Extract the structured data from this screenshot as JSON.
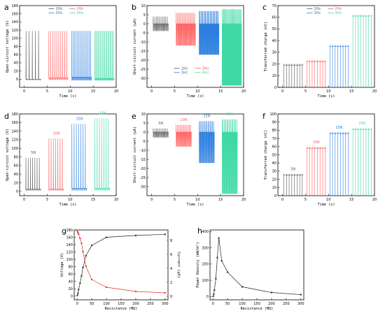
{
  "colors": {
    "black": "#5a5a5a",
    "red": "#ff5a5a",
    "blue": "#2c7fe0",
    "green": "#3fd9a6",
    "dark": "#222222",
    "redline": "#e8302a"
  },
  "chart_data": [
    {
      "panel": "a",
      "type": "line",
      "xlabel": "Time (s)",
      "ylabel": "Open-circuit voltage (V)",
      "xlim": [
        -1,
        20
      ],
      "ylim": [
        -20,
        180
      ],
      "xticks": [
        0,
        5,
        10,
        15,
        20
      ],
      "yticks": [
        0,
        20,
        40,
        60,
        80,
        100,
        120,
        140,
        160,
        180
      ],
      "legend": [
        "1Hz",
        "2Hz",
        "3Hz",
        "4Hz"
      ],
      "series": [
        {
          "name": "1Hz",
          "color": "#5a5a5a",
          "start": 0.3,
          "end": 3.7,
          "count": 5,
          "peak": 118,
          "base": 0,
          "neg": -2
        },
        {
          "name": "2Hz",
          "color": "#ff5a5a",
          "start": 5.3,
          "end": 9.6,
          "count": 10,
          "peak": 118,
          "base": 3,
          "neg": -2
        },
        {
          "name": "3Hz",
          "color": "#2c7fe0",
          "start": 10.3,
          "end": 14.7,
          "count": 14,
          "peak": 118,
          "base": 5,
          "neg": -3
        },
        {
          "name": "4Hz",
          "color": "#3fd9a6",
          "start": 15.3,
          "end": 19.6,
          "count": 18,
          "peak": 118,
          "base": 2,
          "neg": -3
        }
      ]
    },
    {
      "panel": "b",
      "type": "line",
      "xlabel": "Time (s)",
      "ylabel": "Short-circuit current (μA)",
      "xlim": [
        -1,
        20
      ],
      "ylim": [
        -35,
        10
      ],
      "xticks": [
        0,
        5,
        10,
        15,
        20
      ],
      "yticks": [
        -30,
        -25,
        -20,
        -15,
        -10,
        -5,
        0,
        5,
        10
      ],
      "legend": [
        "1Hz",
        "2Hz",
        "3Hz",
        "4Hz"
      ],
      "series": [
        {
          "name": "1Hz",
          "color": "#5a5a5a",
          "start": 0.3,
          "end": 3.7,
          "count": 10,
          "peak": 4,
          "base": 0,
          "neg": -4
        },
        {
          "name": "2Hz",
          "color": "#ff5a5a",
          "start": 5.3,
          "end": 9.6,
          "count": 16,
          "peak": 6,
          "base": 0,
          "neg": -12
        },
        {
          "name": "3Hz",
          "color": "#2c7fe0",
          "start": 10.3,
          "end": 14.7,
          "count": 22,
          "peak": 7,
          "base": 0,
          "neg": -17
        },
        {
          "name": "4Hz",
          "color": "#3fd9a6",
          "start": 15.3,
          "end": 19.6,
          "count": 26,
          "peak": 8,
          "base": 0,
          "neg": -34
        }
      ]
    },
    {
      "panel": "c",
      "type": "step",
      "xlabel": "Time (s)",
      "ylabel": "Transferred charge (nC)",
      "xlim": [
        -1,
        20
      ],
      "ylim": [
        0,
        70
      ],
      "xticks": [
        0,
        5,
        10,
        15,
        20
      ],
      "yticks": [
        0,
        10,
        20,
        30,
        40,
        50,
        60,
        70
      ],
      "legend": [
        "1Hz",
        "2Hz",
        "3Hz",
        "4Hz"
      ],
      "series": [
        {
          "name": "1Hz",
          "color": "#5a5a5a",
          "start": 0.3,
          "end": 4.3,
          "count": 7,
          "level": 19
        },
        {
          "name": "2Hz",
          "color": "#ff5a5a",
          "start": 5.3,
          "end": 9.3,
          "count": 7,
          "level": 22
        },
        {
          "name": "3Hz",
          "color": "#2c7fe0",
          "start": 10.3,
          "end": 14.3,
          "count": 7,
          "level": 35
        },
        {
          "name": "4Hz",
          "color": "#3fd9a6",
          "start": 15.3,
          "end": 19.3,
          "count": 7,
          "level": 61
        }
      ]
    },
    {
      "panel": "d",
      "type": "line",
      "xlabel": "Time (s)",
      "ylabel": "Open-circuit voltage (V)",
      "xlim": [
        -1,
        20
      ],
      "ylim": [
        -10,
        180
      ],
      "xticks": [
        0,
        5,
        10,
        15,
        20
      ],
      "yticks": [
        0,
        20,
        40,
        60,
        80,
        100,
        120,
        140,
        160,
        180
      ],
      "annotations": [
        "5N",
        "10N",
        "15N",
        "20N"
      ],
      "series": [
        {
          "name": "5N",
          "color": "#5a5a5a",
          "start": 0.3,
          "end": 3.7,
          "count": 7,
          "peak": 78,
          "base": 5,
          "neg": 2
        },
        {
          "name": "10N",
          "color": "#ff5a5a",
          "start": 5.3,
          "end": 8.7,
          "count": 7,
          "peak": 123,
          "base": 5,
          "neg": 2
        },
        {
          "name": "15N",
          "color": "#2c7fe0",
          "start": 10.3,
          "end": 13.7,
          "count": 7,
          "peak": 157,
          "base": 7,
          "neg": 2
        },
        {
          "name": "20N",
          "color": "#3fd9a6",
          "start": 15.3,
          "end": 18.7,
          "count": 7,
          "peak": 170,
          "base": 7,
          "neg": 2
        }
      ]
    },
    {
      "panel": "e",
      "type": "line",
      "xlabel": "Time (s)",
      "ylabel": "Short-circuit current (μA)",
      "xlim": [
        -1,
        20
      ],
      "ylim": [
        -35,
        10
      ],
      "xticks": [
        0,
        5,
        10,
        15,
        20
      ],
      "yticks": [
        -30,
        -25,
        -20,
        -15,
        -10,
        -5,
        0,
        5,
        10
      ],
      "annotations": [
        "5N",
        "10N",
        "15N",
        "20N"
      ],
      "series": [
        {
          "name": "5N",
          "color": "#5a5a5a",
          "start": 0.3,
          "end": 3.7,
          "count": 10,
          "peak": 2,
          "base": 0,
          "neg": -3
        },
        {
          "name": "10N",
          "color": "#ff5a5a",
          "start": 5.3,
          "end": 8.7,
          "count": 12,
          "peak": 4,
          "base": 0,
          "neg": -8
        },
        {
          "name": "15N",
          "color": "#2c7fe0",
          "start": 10.3,
          "end": 13.7,
          "count": 14,
          "peak": 6,
          "base": 0,
          "neg": -17
        },
        {
          "name": "20N",
          "color": "#3fd9a6",
          "start": 15.3,
          "end": 18.7,
          "count": 16,
          "peak": 7,
          "base": 0,
          "neg": -34
        }
      ]
    },
    {
      "panel": "f",
      "type": "step",
      "xlabel": "Time (s)",
      "ylabel": "Transferred charge (nC)",
      "xlim": [
        -1,
        20
      ],
      "ylim": [
        0,
        100
      ],
      "xticks": [
        0,
        5,
        10,
        15,
        20
      ],
      "yticks": [
        0,
        10,
        20,
        30,
        40,
        50,
        60,
        70,
        80,
        90,
        100
      ],
      "annotations": [
        "5N",
        "10N",
        "15N",
        "20N"
      ],
      "series": [
        {
          "name": "5N",
          "color": "#5a5a5a",
          "start": 0.3,
          "end": 4.3,
          "count": 7,
          "level": 25
        },
        {
          "name": "10N",
          "color": "#ff5a5a",
          "start": 5.3,
          "end": 9.3,
          "count": 7,
          "level": 58
        },
        {
          "name": "15N",
          "color": "#2c7fe0",
          "start": 10.3,
          "end": 14.3,
          "count": 7,
          "level": 76
        },
        {
          "name": "20N",
          "color": "#3fd9a6",
          "start": 15.3,
          "end": 19.3,
          "count": 7,
          "level": 81
        }
      ]
    },
    {
      "panel": "g",
      "type": "line",
      "xlabel": "Resistance (MΩ)",
      "ylabel": "Voltage (V)",
      "ylabel2": "Current (μA)",
      "xlim": [
        -10,
        310
      ],
      "ylim": [
        -10,
        180
      ],
      "ylim2": [
        -0.5,
        9.5
      ],
      "xticks": [
        0,
        50,
        100,
        150,
        200,
        250,
        300
      ],
      "yticks": [
        0,
        20,
        40,
        60,
        80,
        100,
        120,
        140,
        160,
        180
      ],
      "yticks2": [
        0,
        2,
        4,
        6,
        8
      ],
      "series": [
        {
          "name": "Voltage",
          "axis": "left",
          "color": "#222222",
          "x": [
            1,
            3,
            5,
            10,
            15,
            20,
            30,
            50,
            100,
            200,
            300
          ],
          "y": [
            2,
            8,
            18,
            35,
            55,
            78,
            110,
            138,
            160,
            165,
            168
          ]
        },
        {
          "name": "Current",
          "axis": "right",
          "color": "#e8302a",
          "x": [
            1,
            3,
            5,
            10,
            15,
            20,
            30,
            50,
            100,
            200,
            300
          ],
          "y": [
            9.3,
            9.1,
            8.9,
            8.3,
            7.6,
            6.4,
            4.3,
            2.4,
            1.3,
            0.7,
            0.5
          ]
        }
      ]
    },
    {
      "panel": "h",
      "type": "line",
      "xlabel": "Resistance (MΩ)",
      "ylabel": "Power Density (mW/m²)",
      "xlim": [
        -10,
        310
      ],
      "ylim": [
        -20,
        410
      ],
      "xticks": [
        0,
        50,
        100,
        150,
        200,
        250,
        300
      ],
      "yticks": [
        0,
        100,
        200,
        300,
        400
      ],
      "series": [
        {
          "name": "Power Density",
          "color": "#222222",
          "x": [
            1,
            3,
            5,
            10,
            15,
            20,
            30,
            50,
            100,
            200,
            300
          ],
          "y": [
            2,
            15,
            40,
            110,
            240,
            360,
            220,
            150,
            60,
            25,
            12
          ]
        }
      ]
    }
  ]
}
